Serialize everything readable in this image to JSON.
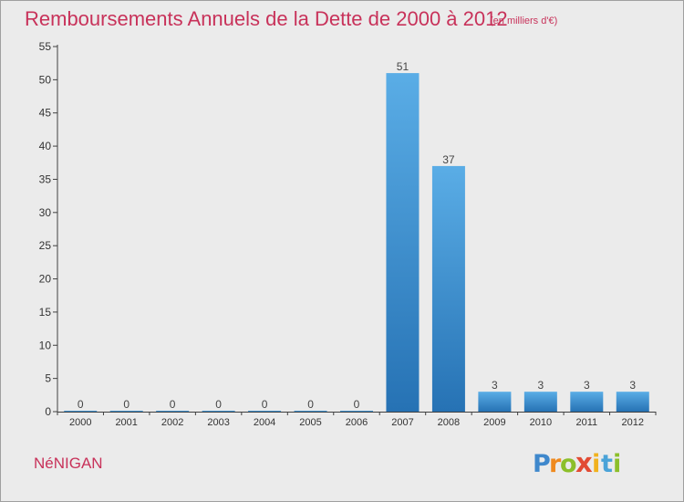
{
  "chart_data": {
    "type": "bar",
    "title": "Remboursements Annuels de la Dette de 2000 à 2012",
    "subtitle": "(en milliers d'€)",
    "categories": [
      "2000",
      "2001",
      "2002",
      "2003",
      "2004",
      "2005",
      "2006",
      "2007",
      "2008",
      "2009",
      "2010",
      "2011",
      "2012"
    ],
    "values": [
      0,
      0,
      0,
      0,
      0,
      0,
      0,
      51,
      37,
      3,
      3,
      3,
      3
    ],
    "xlabel": "",
    "ylabel": "",
    "ylim": [
      0,
      55
    ],
    "yticks": [
      0,
      5,
      10,
      15,
      20,
      25,
      30,
      35,
      40,
      45,
      50,
      55
    ],
    "grid": false,
    "legend": "none",
    "bar_color_top": "#5aade6",
    "bar_color_bottom": "#2672b4",
    "data_labels": true
  },
  "footer": {
    "commune": "NéNIGAN",
    "logo_text": "Proxiti"
  },
  "colors": {
    "title": "#c8325a",
    "background": "#ebebeb",
    "axis": "#404040"
  }
}
